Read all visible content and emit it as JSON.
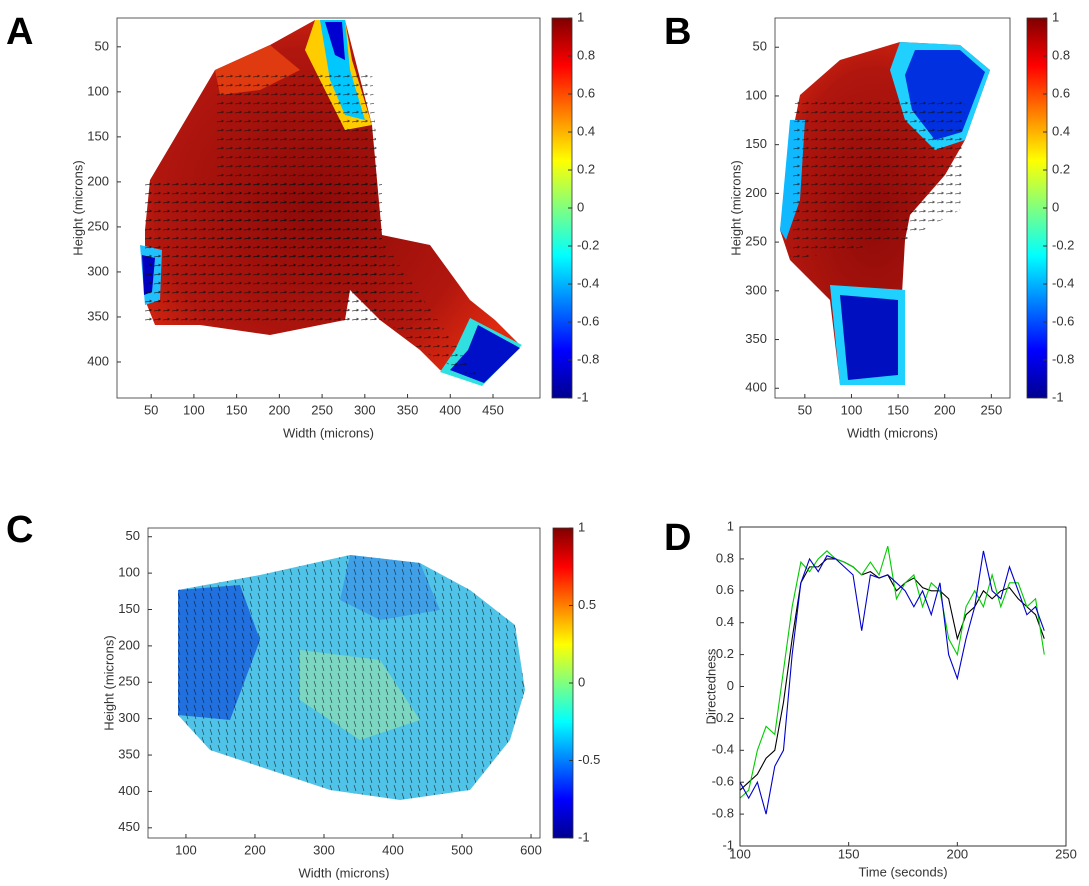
{
  "chart_data": [
    {
      "type": "heatmap",
      "panel": "A",
      "xlabel": "Width (microns)",
      "ylabel": "Height (microns)",
      "xlim": [
        10,
        505
      ],
      "ylim": [
        18,
        440
      ],
      "y_reversed": true,
      "xticks": [
        50,
        100,
        150,
        200,
        250,
        300,
        350,
        400,
        450
      ],
      "yticks": [
        50,
        100,
        150,
        200,
        250,
        300,
        350,
        400
      ],
      "colorbar": {
        "lim": [
          -1,
          1
        ],
        "ticks": [
          1,
          0.8,
          0.6,
          0.4,
          0.2,
          0,
          -0.2,
          -0.4,
          -0.6,
          -0.8,
          -1
        ]
      }
    },
    {
      "type": "heatmap",
      "panel": "B",
      "xlabel": "Width (microns)",
      "ylabel": "Height (microns)",
      "xlim": [
        18,
        270
      ],
      "ylim": [
        20,
        410
      ],
      "y_reversed": true,
      "xticks": [
        50,
        100,
        150,
        200,
        250
      ],
      "yticks": [
        50,
        100,
        150,
        200,
        250,
        300,
        350,
        400
      ],
      "colorbar": {
        "lim": [
          -1,
          1
        ],
        "ticks": [
          1,
          0.8,
          0.6,
          0.4,
          0.2,
          0,
          -0.2,
          -0.4,
          -0.6,
          -0.8,
          -1
        ]
      }
    },
    {
      "type": "heatmap",
      "panel": "C",
      "xlabel": "Width (microns)",
      "ylabel": "Height (microns)",
      "xlim": [
        45,
        613
      ],
      "ylim": [
        38,
        464
      ],
      "y_reversed": true,
      "xticks": [
        100,
        200,
        300,
        400,
        500,
        600
      ],
      "yticks": [
        50,
        100,
        150,
        200,
        250,
        300,
        350,
        400,
        450
      ],
      "colorbar": {
        "lim": [
          -1,
          1
        ],
        "ticks": [
          1,
          0.5,
          0,
          -0.5,
          -1
        ]
      }
    },
    {
      "type": "line",
      "panel": "D",
      "xlabel": "Time (seconds)",
      "ylabel": "Directedness",
      "xlim": [
        100,
        250
      ],
      "ylim": [
        -1,
        1
      ],
      "xticks": [
        100,
        150,
        200,
        250
      ],
      "yticks": [
        1,
        0.8,
        0.6,
        0.4,
        0.2,
        0,
        -0.2,
        -0.4,
        -0.6,
        -0.8,
        -1
      ],
      "x": [
        100,
        104,
        108,
        112,
        116,
        120,
        124,
        128,
        132,
        136,
        140,
        144,
        148,
        152,
        156,
        160,
        164,
        168,
        172,
        176,
        180,
        184,
        188,
        192,
        196,
        200,
        204,
        208,
        212,
        216,
        220,
        224,
        228,
        232,
        236,
        240
      ],
      "series": [
        {
          "color": "#000000",
          "values": [
            -0.65,
            -0.6,
            -0.55,
            -0.45,
            -0.4,
            -0.1,
            0.3,
            0.65,
            0.75,
            0.75,
            0.8,
            0.8,
            0.78,
            0.75,
            0.7,
            0.72,
            0.68,
            0.7,
            0.6,
            0.65,
            0.68,
            0.62,
            0.6,
            0.6,
            0.55,
            0.3,
            0.45,
            0.5,
            0.6,
            0.55,
            0.6,
            0.62,
            0.55,
            0.5,
            0.45,
            0.3
          ]
        },
        {
          "color": "#00cc00",
          "values": [
            -0.7,
            -0.65,
            -0.4,
            -0.25,
            -0.3,
            0.1,
            0.5,
            0.78,
            0.72,
            0.8,
            0.85,
            0.8,
            0.78,
            0.75,
            0.7,
            0.78,
            0.7,
            0.88,
            0.55,
            0.65,
            0.7,
            0.5,
            0.65,
            0.6,
            0.3,
            0.2,
            0.5,
            0.6,
            0.5,
            0.7,
            0.5,
            0.65,
            0.65,
            0.5,
            0.55,
            0.2
          ]
        },
        {
          "color": "#0000cc",
          "values": [
            -0.6,
            -0.7,
            -0.6,
            -0.8,
            -0.5,
            -0.4,
            0.2,
            0.65,
            0.8,
            0.72,
            0.82,
            0.8,
            0.75,
            0.7,
            0.35,
            0.7,
            0.68,
            0.7,
            0.65,
            0.6,
            0.5,
            0.6,
            0.45,
            0.65,
            0.2,
            0.05,
            0.3,
            0.5,
            0.85,
            0.6,
            0.55,
            0.75,
            0.6,
            0.45,
            0.5,
            0.35
          ]
        }
      ]
    }
  ]
}
